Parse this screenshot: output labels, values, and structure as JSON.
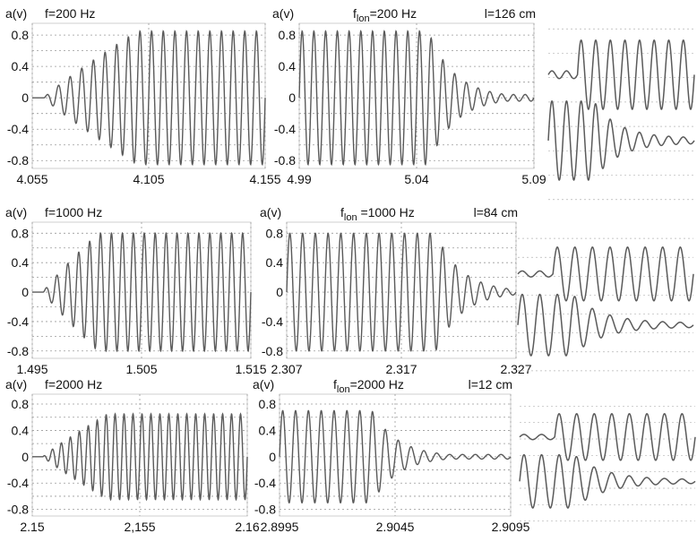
{
  "chart_data": [
    {
      "type": "line",
      "id": "p1",
      "ylabel": "a(v)",
      "title_text": "f=200  Hz",
      "title_sub": "",
      "title_rest": "",
      "length_label": "",
      "xticks": [
        "4.055",
        "4.105",
        "4.155"
      ],
      "yticks": [
        "0.8",
        "0.4",
        "0",
        "-0.4",
        "-0.8"
      ],
      "ylim": [
        -0.9,
        0.95
      ],
      "signal": {
        "cycles": 20,
        "amplitude": 0.85,
        "envelope": "rise",
        "rise_end": 0.45,
        "decay_start": 1.0
      }
    },
    {
      "type": "line",
      "id": "p2",
      "ylabel": "a(v)",
      "title_text": "f",
      "title_sub": "lon",
      "title_rest": "=200  Hz",
      "length_label": "l=126 cm",
      "xticks": [
        "4.99",
        "5.04",
        "5.09"
      ],
      "yticks": [
        "0.8",
        "0.4",
        "0",
        "-0.4",
        "-0.8"
      ],
      "ylim": [
        -0.9,
        0.95
      ],
      "signal": {
        "cycles": 20,
        "amplitude": 0.85,
        "envelope": "fall",
        "rise_end": 0.0,
        "decay_start": 0.55
      }
    },
    {
      "type": "line",
      "id": "p3",
      "ylabel": "a(v)",
      "title_text": "f=1000  Hz",
      "title_sub": "",
      "title_rest": "",
      "length_label": "",
      "xticks": [
        "1.495",
        "1.505",
        "1.515"
      ],
      "yticks": [
        "0.8",
        "0.4",
        "0",
        "-0.4",
        "-0.8"
      ],
      "ylim": [
        -0.9,
        0.95
      ],
      "signal": {
        "cycles": 20,
        "amplitude": 0.8,
        "envelope": "rise",
        "rise_end": 0.3,
        "decay_start": 1.0
      }
    },
    {
      "type": "line",
      "id": "p4",
      "ylabel": "a(v)",
      "title_text": "f",
      "title_sub": "lon",
      "title_rest": " =1000  Hz",
      "length_label": "l=84 cm",
      "xticks": [
        "2.307",
        "2.317",
        "2.327"
      ],
      "yticks": [
        "0.8",
        "0.4",
        "0",
        "-0.4",
        "-0.8"
      ],
      "ylim": [
        -0.9,
        0.95
      ],
      "signal": {
        "cycles": 18,
        "amplitude": 0.8,
        "envelope": "fall",
        "rise_end": 0.0,
        "decay_start": 0.65
      }
    },
    {
      "type": "line",
      "id": "p5",
      "ylabel": "a(v)",
      "title_text": "f=2000  Hz",
      "title_sub": "",
      "title_rest": "",
      "length_label": "",
      "xticks": [
        "2.15",
        "2,155",
        "2.16"
      ],
      "yticks": [
        "0.8",
        "0.4",
        "0",
        "-0.4",
        "-0.8"
      ],
      "ylim": [
        -0.9,
        0.95
      ],
      "signal": {
        "cycles": 24,
        "amplitude": 0.65,
        "envelope": "rise",
        "rise_end": 0.35,
        "decay_start": 1.0
      }
    },
    {
      "type": "line",
      "id": "p6",
      "ylabel": "a(v)",
      "title_text": "f",
      "title_sub": "lon",
      "title_rest": "=2000 Hz",
      "length_label": "l=12  cm",
      "xticks": [
        "2.8995",
        "2.9045",
        "2.9095"
      ],
      "yticks": [
        "0.8",
        "0.4",
        "0",
        "-0.4",
        "-0.8"
      ],
      "ylim": [
        -0.9,
        0.95
      ],
      "signal": {
        "cycles": 18,
        "amplitude": 0.7,
        "envelope": "fall",
        "rise_end": 0.0,
        "decay_start": 0.4
      }
    },
    {
      "type": "line",
      "id": "z1",
      "ylabel": "",
      "title_text": "",
      "title_sub": "",
      "title_rest": "",
      "length_label": "",
      "xticks": [],
      "yticks": [],
      "ylim": [
        -1,
        1
      ],
      "signal": {
        "cycles": 10,
        "amplitude": 0.9,
        "envelope": "step",
        "rise_end": 0.0,
        "decay_start": 0.0
      }
    },
    {
      "type": "line",
      "id": "z2",
      "ylabel": "",
      "title_text": "",
      "title_sub": "",
      "title_rest": "",
      "length_label": "",
      "xticks": [],
      "yticks": [],
      "ylim": [
        -1,
        1
      ],
      "signal": {
        "cycles": 10,
        "amplitude": 0.9,
        "envelope": "step",
        "rise_end": 0.0,
        "decay_start": 0.0
      }
    },
    {
      "type": "line",
      "id": "z3",
      "ylabel": "",
      "title_text": "",
      "title_sub": "",
      "title_rest": "",
      "length_label": "",
      "xticks": [],
      "yticks": [],
      "ylim": [
        -1,
        1
      ],
      "signal": {
        "cycles": 10,
        "amplitude": 0.9,
        "envelope": "step",
        "rise_end": 0.0,
        "decay_start": 0.0
      }
    }
  ]
}
